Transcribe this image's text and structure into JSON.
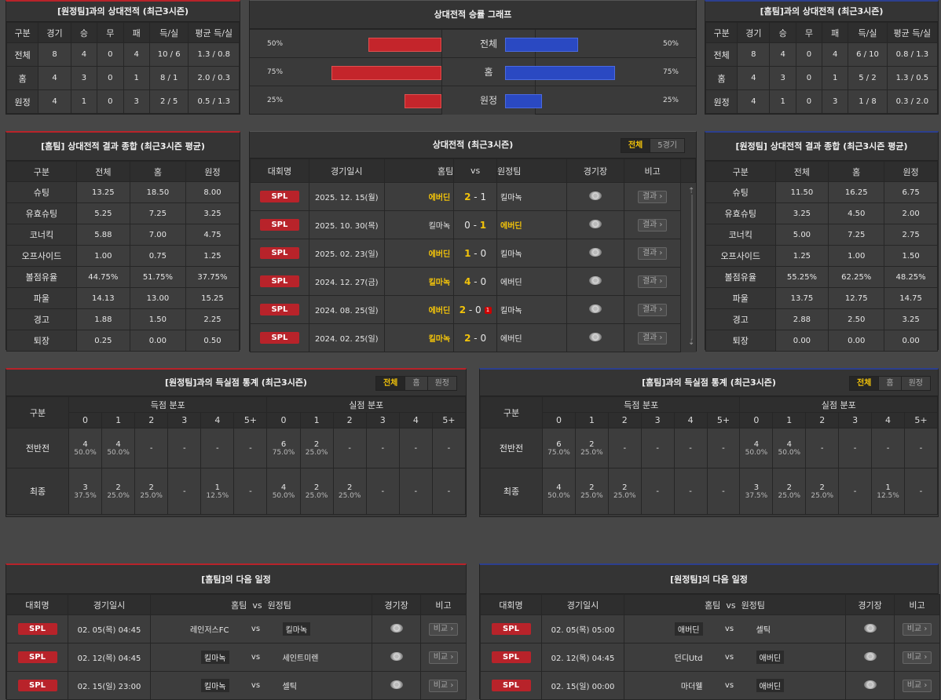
{
  "away_h2h": {
    "title": "[원정팀]과의 상대전적 (최근3시즌)",
    "headers": [
      "구분",
      "경기",
      "승",
      "무",
      "패",
      "득/실",
      "평균 득/실"
    ],
    "rows": [
      [
        "전체",
        "8",
        "4",
        "0",
        "4",
        "10 / 6",
        "1.3 / 0.8"
      ],
      [
        "홈",
        "4",
        "3",
        "0",
        "1",
        "8 / 1",
        "2.0 / 0.3"
      ],
      [
        "원정",
        "4",
        "1",
        "0",
        "3",
        "2 / 5",
        "0.5 / 1.3"
      ]
    ]
  },
  "home_h2h": {
    "title": "[홈팀]과의 상대전적 (최근3시즌)",
    "headers": [
      "구분",
      "경기",
      "승",
      "무",
      "패",
      "득/실",
      "평균 득/실"
    ],
    "rows": [
      [
        "전체",
        "8",
        "4",
        "0",
        "4",
        "6 / 10",
        "0.8 / 1.3"
      ],
      [
        "홈",
        "4",
        "3",
        "0",
        "1",
        "5 / 2",
        "1.3 / 0.5"
      ],
      [
        "원정",
        "4",
        "1",
        "0",
        "3",
        "1 / 8",
        "0.3 / 2.0"
      ]
    ]
  },
  "graph": {
    "title": "상대전적 승률 그래프",
    "rows": [
      {
        "label": "전체",
        "left": "50%",
        "right": "50%",
        "left_val": 0.5,
        "right_val": 0.5
      },
      {
        "label": "홈",
        "left": "75%",
        "right": "75%",
        "left_val": 0.75,
        "right_val": 0.75
      },
      {
        "label": "원정",
        "left": "25%",
        "right": "25%",
        "left_val": 0.25,
        "right_val": 0.25
      }
    ]
  },
  "home_summary": {
    "title": "[홈팀] 상대전적 결과 종합 (최근3시즌 평균)",
    "headers": [
      "구분",
      "전체",
      "홈",
      "원정"
    ],
    "rows": [
      [
        "슈팅",
        "13.25",
        "18.50",
        "8.00"
      ],
      [
        "유효슈팅",
        "5.25",
        "7.25",
        "3.25"
      ],
      [
        "코너킥",
        "5.88",
        "7.00",
        "4.75"
      ],
      [
        "오프사이드",
        "1.00",
        "0.75",
        "1.25"
      ],
      [
        "볼점유율",
        "44.75%",
        "51.75%",
        "37.75%"
      ],
      [
        "파울",
        "14.13",
        "13.00",
        "15.25"
      ],
      [
        "경고",
        "1.88",
        "1.50",
        "2.25"
      ],
      [
        "퇴장",
        "0.25",
        "0.00",
        "0.50"
      ]
    ]
  },
  "away_summary": {
    "title": "[원정팀] 상대전적 결과 종합 (최근3시즌 평균)",
    "headers": [
      "구분",
      "전체",
      "홈",
      "원정"
    ],
    "rows": [
      [
        "슈팅",
        "11.50",
        "16.25",
        "6.75"
      ],
      [
        "유효슈팅",
        "3.25",
        "4.50",
        "2.00"
      ],
      [
        "코너킥",
        "5.00",
        "7.25",
        "2.75"
      ],
      [
        "오프사이드",
        "1.25",
        "1.00",
        "1.50"
      ],
      [
        "볼점유율",
        "55.25%",
        "62.25%",
        "48.25%"
      ],
      [
        "파울",
        "13.75",
        "12.75",
        "14.75"
      ],
      [
        "경고",
        "2.88",
        "2.50",
        "3.25"
      ],
      [
        "퇴장",
        "0.00",
        "0.00",
        "0.00"
      ]
    ]
  },
  "h2h_matches": {
    "title": "상대전적 (최근3시즌)",
    "tabs": [
      "전체",
      "5경기"
    ],
    "headers": {
      "league": "대회명",
      "date": "경기일시",
      "home": "홈팀",
      "vs": "vs",
      "away": "원정팀",
      "stadium": "경기장",
      "note": "비고"
    },
    "result_label": "결과",
    "rows": [
      {
        "league": "SPL",
        "date": "2025. 12. 15(월)",
        "home": "에버딘",
        "hs": "2",
        "as": "1",
        "away": "킬마녹",
        "winner": "home",
        "card": ""
      },
      {
        "league": "SPL",
        "date": "2025. 10. 30(목)",
        "home": "킬마녹",
        "hs": "0",
        "as": "1",
        "away": "에버딘",
        "winner": "away",
        "card": ""
      },
      {
        "league": "SPL",
        "date": "2025. 02. 23(일)",
        "home": "에버딘",
        "hs": "1",
        "as": "0",
        "away": "킬마녹",
        "winner": "home",
        "card": ""
      },
      {
        "league": "SPL",
        "date": "2024. 12. 27(금)",
        "home": "킬마녹",
        "hs": "4",
        "as": "0",
        "away": "에버딘",
        "winner": "home",
        "card": ""
      },
      {
        "league": "SPL",
        "date": "2024. 08. 25(일)",
        "home": "에버딘",
        "hs": "2",
        "as": "0",
        "away": "킬마녹",
        "winner": "home",
        "card": "1"
      },
      {
        "league": "SPL",
        "date": "2024. 02. 25(일)",
        "home": "킬마녹",
        "hs": "2",
        "as": "0",
        "away": "에버딘",
        "winner": "home",
        "card": ""
      }
    ]
  },
  "away_goals": {
    "title": "[원정팀]과의 득실점 통계 (최근3시즌)",
    "tabs": [
      "전체",
      "홈",
      "원정"
    ],
    "label_header": "구분",
    "scored": "득점 분포",
    "conceded": "실점 분포",
    "cols": [
      "0",
      "1",
      "2",
      "3",
      "4",
      "5+"
    ],
    "rows": [
      {
        "label": "전반전",
        "scored": [
          [
            "4",
            "50.0%"
          ],
          [
            "4",
            "50.0%"
          ],
          [
            "-",
            ""
          ],
          [
            "-",
            ""
          ],
          [
            "-",
            ""
          ],
          [
            "-",
            ""
          ]
        ],
        "conceded": [
          [
            "6",
            "75.0%"
          ],
          [
            "2",
            "25.0%"
          ],
          [
            "-",
            ""
          ],
          [
            "-",
            ""
          ],
          [
            "-",
            ""
          ],
          [
            "-",
            ""
          ]
        ]
      },
      {
        "label": "최종",
        "scored": [
          [
            "3",
            "37.5%"
          ],
          [
            "2",
            "25.0%"
          ],
          [
            "2",
            "25.0%"
          ],
          [
            "-",
            ""
          ],
          [
            "1",
            "12.5%"
          ],
          [
            "-",
            ""
          ]
        ],
        "conceded": [
          [
            "4",
            "50.0%"
          ],
          [
            "2",
            "25.0%"
          ],
          [
            "2",
            "25.0%"
          ],
          [
            "-",
            ""
          ],
          [
            "-",
            ""
          ],
          [
            "-",
            ""
          ]
        ]
      }
    ]
  },
  "home_goals": {
    "title": "[홈팀]과의 득실점 통계 (최근3시즌)",
    "tabs": [
      "전체",
      "홈",
      "원정"
    ],
    "label_header": "구분",
    "scored": "득점 분포",
    "conceded": "실점 분포",
    "cols": [
      "0",
      "1",
      "2",
      "3",
      "4",
      "5+"
    ],
    "rows": [
      {
        "label": "전반전",
        "scored": [
          [
            "6",
            "75.0%"
          ],
          [
            "2",
            "25.0%"
          ],
          [
            "-",
            ""
          ],
          [
            "-",
            ""
          ],
          [
            "-",
            ""
          ],
          [
            "-",
            ""
          ]
        ],
        "conceded": [
          [
            "4",
            "50.0%"
          ],
          [
            "4",
            "50.0%"
          ],
          [
            "-",
            ""
          ],
          [
            "-",
            ""
          ],
          [
            "-",
            ""
          ],
          [
            "-",
            ""
          ]
        ]
      },
      {
        "label": "최종",
        "scored": [
          [
            "4",
            "50.0%"
          ],
          [
            "2",
            "25.0%"
          ],
          [
            "2",
            "25.0%"
          ],
          [
            "-",
            ""
          ],
          [
            "-",
            ""
          ],
          [
            "-",
            ""
          ]
        ],
        "conceded": [
          [
            "3",
            "37.5%"
          ],
          [
            "2",
            "25.0%"
          ],
          [
            "2",
            "25.0%"
          ],
          [
            "-",
            ""
          ],
          [
            "1",
            "12.5%"
          ],
          [
            "-",
            ""
          ]
        ]
      }
    ]
  },
  "home_next": {
    "title": "[홈팀]의 다음 일정",
    "headers": {
      "league": "대회명",
      "date": "경기일시",
      "home": "홈팀",
      "vs": "vs",
      "away": "원정팀",
      "stadium": "경기장",
      "note": "비고"
    },
    "note_label": "비교",
    "rows": [
      {
        "league": "SPL",
        "date": "02. 05(목) 04:45",
        "home": "레인저스FC",
        "away": "킬마녹",
        "hl": "away"
      },
      {
        "league": "SPL",
        "date": "02. 12(목) 04:45",
        "home": "킬마녹",
        "away": "세인트미렌",
        "hl": "home"
      },
      {
        "league": "SPL",
        "date": "02. 15(일) 23:00",
        "home": "킬마녹",
        "away": "셀틱",
        "hl": "home"
      }
    ]
  },
  "away_next": {
    "title": "[원정팀]의 다음 일정",
    "headers": {
      "league": "대회명",
      "date": "경기일시",
      "home": "홈팀",
      "vs": "vs",
      "away": "원정팀",
      "stadium": "경기장",
      "note": "비고"
    },
    "note_label": "비교",
    "rows": [
      {
        "league": "SPL",
        "date": "02. 05(목) 05:00",
        "home": "애버딘",
        "away": "셀틱",
        "hl": "home"
      },
      {
        "league": "SPL",
        "date": "02. 12(목) 04:45",
        "home": "던디Utd",
        "away": "애버딘",
        "hl": "away"
      },
      {
        "league": "SPL",
        "date": "02. 15(일) 00:00",
        "home": "마더웰",
        "away": "애버딘",
        "hl": "away"
      }
    ]
  }
}
